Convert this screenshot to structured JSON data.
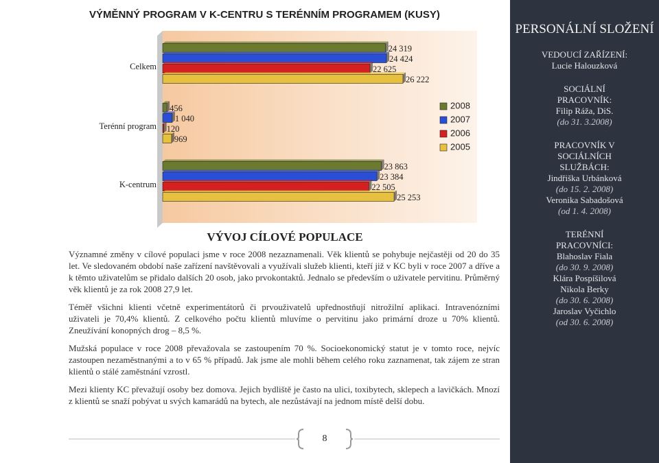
{
  "chart_data": {
    "type": "bar",
    "title": "VÝMĚNNÝ PROGRAM V K-CENTRU S TERÉNNÍM PROGRAMEM (KUSY)",
    "categories": [
      "Celkem",
      "Terénní program",
      "K-centrum"
    ],
    "series": [
      {
        "name": "2008",
        "color": "#6b7a2e",
        "values": [
          24319,
          456,
          23863
        ],
        "value_labels": [
          "24 319",
          "456",
          "23 863"
        ]
      },
      {
        "name": "2007",
        "color": "#2a4fd6",
        "values": [
          24424,
          1040,
          23384
        ],
        "value_labels": [
          "24 424",
          "1 040",
          "23 384"
        ]
      },
      {
        "name": "2006",
        "color": "#d42020",
        "values": [
          22625,
          120,
          22505
        ],
        "value_labels": [
          "22 625",
          "120",
          "22 505"
        ]
      },
      {
        "name": "2005",
        "color": "#e8c040",
        "values": [
          26222,
          969,
          25253
        ],
        "value_labels": [
          "26 222",
          "969",
          "25 253"
        ]
      }
    ],
    "legend": "right"
  },
  "document": {
    "heading": "VÝVOJ CÍLOVÉ POPULACE",
    "paragraphs": [
      "Významné změny v cílové populaci jsme v roce 2008 nezaznamenali. Věk klientů se pohybuje nejčastěji od 20 do 35 let. Ve sledovaném období naše zařízení navštěvovali a využívali služeb klienti, kteří již v KC byli v roce 2007 a dříve a k těmto uživatelům se přidalo dalších 20 osob, jako prvokontaktů. Jednalo se především o uživatele pervitinu. Průměrný věk klientů je za rok 2008 27,9 let.",
      "Téměř všichni klienti včetně experimentátorů či prvouživatelů upřednostňují nitrožilní aplikaci. Intravenózními uživateli je 70,4% klientů. Z celkového počtu klientů mluvíme o pervitinu jako primární droze u 70% klientů. Zneužívání konopných drog – 8,5 %.",
      "Mužská populace v roce 2008 převažovala se zastoupením 70 %. Socioekonomický statut je v tomto roce, nejvíc zastoupen nezaměstnanými a to v 65 % případů. Jak jsme ale mohli během celého roku zaznamenat, tak zájem ze stran klientů o stálé zaměstnání vzrostl.",
      "Mezi klienty KC převažují osoby bez domova. Jejich bydliště je často na ulici, toxibytech, sklepech a lavičkách. Mnozí z klientů se snaží pobývat u svých kamarádů na bytech, ale nezůstávají na jednom místě delší dobu."
    ],
    "page_number": "8"
  },
  "sidebar": {
    "title": "PERSONÁLNÍ SLOŽENÍ",
    "groups": [
      {
        "role": "VEDOUCÍ ZAŘÍZENÍ:",
        "lines": [
          "Lucie Halouzková"
        ]
      },
      {
        "role": "SOCIÁLNÍ PRACOVNÍK:",
        "lines": [
          "Filip Ráža, DiS.",
          "(do 31. 3.2008)"
        ]
      },
      {
        "role": "PRACOVNÍK V SOCIÁLNÍCH SLUŽBÁCH:",
        "lines": [
          "Jindřiška Urbánková",
          "(do 15. 2. 2008)",
          "Veronika Sabadošová",
          "(od 1. 4. 2008)"
        ]
      },
      {
        "role": "TERÉNNÍ PRACOVNÍCI:",
        "lines": [
          "Blahoslav Fiala",
          "(do 30. 9. 2008)",
          "Klára Pospíšilová",
          "Nikola Berky",
          "(do 30. 6. 2008)",
          "Jaroslav Vyčichlo",
          "(od 30. 6. 2008)"
        ]
      }
    ]
  }
}
